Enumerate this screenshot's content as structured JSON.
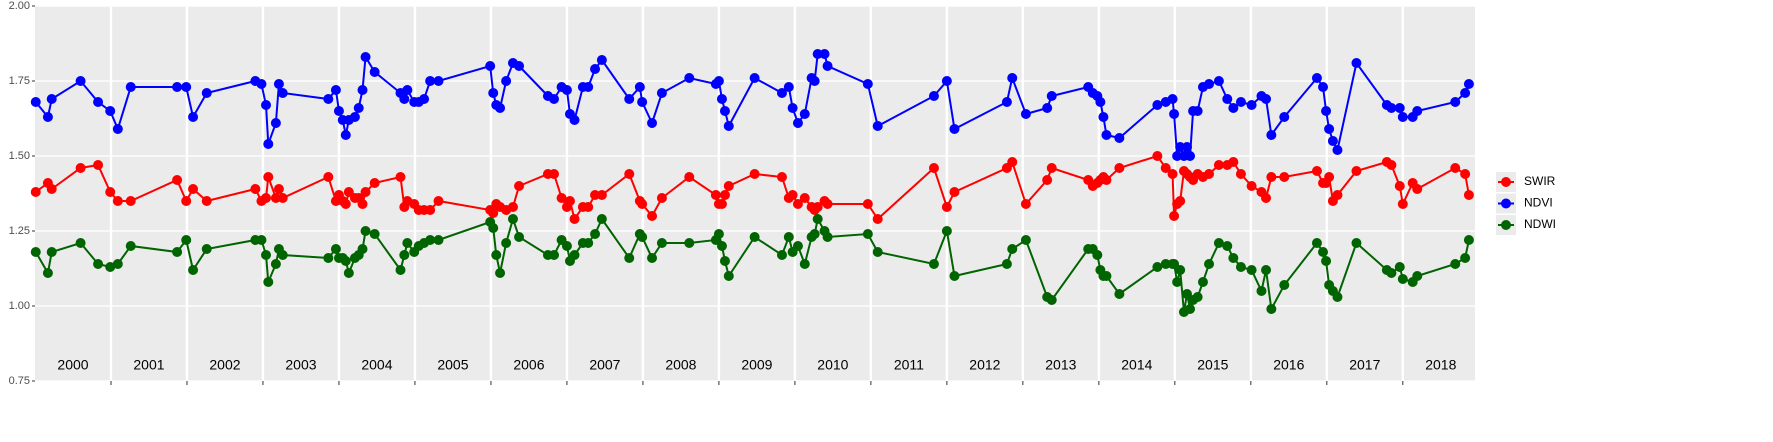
{
  "chart_data": {
    "type": "line",
    "x": [
      2000.01,
      2000.17,
      2000.22,
      2000.6,
      2000.83,
      2000.99,
      2001.09,
      2001.26,
      2001.87,
      2001.99,
      2002.08,
      2002.26,
      2002.9,
      2002.98,
      2003.04,
      2003.07,
      2003.17,
      2003.21,
      2003.26,
      2003.86,
      2003.96,
      2004.0,
      2004.05,
      2004.09,
      2004.13,
      2004.21,
      2004.26,
      2004.31,
      2004.35,
      2004.47,
      2004.81,
      2004.86,
      2004.9,
      2004.99,
      2005.05,
      2005.12,
      2005.2,
      2005.31,
      2005.99,
      2006.03,
      2006.07,
      2006.12,
      2006.2,
      2006.29,
      2006.37,
      2006.75,
      2006.83,
      2006.93,
      2007.0,
      2007.04,
      2007.1,
      2007.21,
      2007.28,
      2007.37,
      2007.46,
      2007.82,
      2007.96,
      2007.99,
      2008.12,
      2008.25,
      2008.61,
      2008.96,
      2009.0,
      2009.04,
      2009.08,
      2009.13,
      2009.47,
      2009.83,
      2009.92,
      2009.97,
      2010.04,
      2010.13,
      2010.22,
      2010.26,
      2010.3,
      2010.39,
      2010.43,
      2010.96,
      2011.09,
      2011.83,
      2012.0,
      2012.1,
      2012.79,
      2012.86,
      2013.04,
      2013.32,
      2013.38,
      2013.86,
      2013.92,
      2013.98,
      2014.02,
      2014.06,
      2014.1,
      2014.27,
      2014.77,
      2014.88,
      2014.97,
      2014.99,
      2015.03,
      2015.07,
      2015.12,
      2015.16,
      2015.2,
      2015.24,
      2015.3,
      2015.37,
      2015.45,
      2015.58,
      2015.69,
      2015.77,
      2015.87,
      2016.01,
      2016.14,
      2016.2,
      2016.27,
      2016.44,
      2016.87,
      2016.95,
      2016.99,
      2017.03,
      2017.08,
      2017.14,
      2017.39,
      2017.79,
      2017.85,
      2017.96,
      2018.0,
      2018.13,
      2018.19,
      2018.69,
      2018.82,
      2018.87
    ],
    "series": [
      {
        "name": "SWIR",
        "color": "#ff0000",
        "values": [
          1.38,
          1.41,
          1.39,
          1.46,
          1.47,
          1.38,
          1.35,
          1.35,
          1.42,
          1.35,
          1.39,
          1.35,
          1.39,
          1.35,
          1.36,
          1.43,
          1.36,
          1.39,
          1.36,
          1.43,
          1.35,
          1.37,
          1.35,
          1.34,
          1.38,
          1.36,
          1.36,
          1.34,
          1.38,
          1.41,
          1.43,
          1.33,
          1.35,
          1.34,
          1.32,
          1.32,
          1.32,
          1.35,
          1.32,
          1.31,
          1.34,
          1.33,
          1.32,
          1.33,
          1.4,
          1.44,
          1.44,
          1.36,
          1.33,
          1.35,
          1.29,
          1.33,
          1.33,
          1.37,
          1.37,
          1.44,
          1.35,
          1.34,
          1.3,
          1.36,
          1.43,
          1.37,
          1.34,
          1.34,
          1.37,
          1.4,
          1.44,
          1.43,
          1.36,
          1.37,
          1.34,
          1.36,
          1.33,
          1.32,
          1.33,
          1.35,
          1.34,
          1.34,
          1.29,
          1.46,
          1.33,
          1.38,
          1.46,
          1.48,
          1.34,
          1.42,
          1.46,
          1.42,
          1.4,
          1.41,
          1.42,
          1.43,
          1.42,
          1.46,
          1.5,
          1.46,
          1.44,
          1.3,
          1.34,
          1.35,
          1.45,
          1.44,
          1.43,
          1.42,
          1.44,
          1.43,
          1.44,
          1.47,
          1.47,
          1.48,
          1.44,
          1.4,
          1.38,
          1.36,
          1.43,
          1.43,
          1.45,
          1.41,
          1.41,
          1.43,
          1.35,
          1.37,
          1.45,
          1.48,
          1.47,
          1.4,
          1.34,
          1.41,
          1.39,
          1.46,
          1.44,
          1.37
        ]
      },
      {
        "name": "NDVI",
        "color": "#0000ff",
        "values": [
          1.68,
          1.63,
          1.69,
          1.75,
          1.68,
          1.65,
          1.59,
          1.73,
          1.73,
          1.73,
          1.63,
          1.71,
          1.75,
          1.74,
          1.67,
          1.54,
          1.61,
          1.74,
          1.71,
          1.69,
          1.72,
          1.65,
          1.62,
          1.57,
          1.62,
          1.63,
          1.66,
          1.72,
          1.83,
          1.78,
          1.71,
          1.69,
          1.72,
          1.68,
          1.68,
          1.69,
          1.75,
          1.75,
          1.8,
          1.71,
          1.67,
          1.66,
          1.75,
          1.81,
          1.8,
          1.7,
          1.69,
          1.73,
          1.72,
          1.64,
          1.62,
          1.73,
          1.73,
          1.79,
          1.82,
          1.69,
          1.73,
          1.68,
          1.61,
          1.71,
          1.76,
          1.74,
          1.75,
          1.69,
          1.65,
          1.6,
          1.76,
          1.71,
          1.73,
          1.66,
          1.61,
          1.64,
          1.76,
          1.75,
          1.84,
          1.84,
          1.8,
          1.74,
          1.6,
          1.7,
          1.75,
          1.59,
          1.68,
          1.76,
          1.64,
          1.66,
          1.7,
          1.73,
          1.71,
          1.7,
          1.68,
          1.63,
          1.57,
          1.56,
          1.67,
          1.68,
          1.69,
          1.64,
          1.5,
          1.53,
          1.5,
          1.53,
          1.5,
          1.65,
          1.65,
          1.73,
          1.74,
          1.75,
          1.69,
          1.66,
          1.68,
          1.67,
          1.7,
          1.69,
          1.57,
          1.63,
          1.76,
          1.73,
          1.65,
          1.59,
          1.55,
          1.52,
          1.81,
          1.67,
          1.66,
          1.66,
          1.63,
          1.63,
          1.65,
          1.68,
          1.71,
          1.74
        ]
      },
      {
        "name": "NDWI",
        "color": "#006400",
        "values": [
          1.18,
          1.11,
          1.18,
          1.21,
          1.14,
          1.13,
          1.14,
          1.2,
          1.18,
          1.22,
          1.12,
          1.19,
          1.22,
          1.22,
          1.17,
          1.08,
          1.14,
          1.19,
          1.17,
          1.16,
          1.19,
          1.16,
          1.16,
          1.15,
          1.11,
          1.16,
          1.17,
          1.19,
          1.25,
          1.24,
          1.12,
          1.17,
          1.21,
          1.18,
          1.2,
          1.21,
          1.22,
          1.22,
          1.28,
          1.26,
          1.17,
          1.11,
          1.21,
          1.29,
          1.23,
          1.17,
          1.17,
          1.22,
          1.2,
          1.15,
          1.17,
          1.21,
          1.21,
          1.24,
          1.29,
          1.16,
          1.24,
          1.23,
          1.16,
          1.21,
          1.21,
          1.22,
          1.24,
          1.2,
          1.15,
          1.1,
          1.23,
          1.17,
          1.23,
          1.18,
          1.2,
          1.14,
          1.23,
          1.24,
          1.29,
          1.25,
          1.23,
          1.24,
          1.18,
          1.14,
          1.25,
          1.1,
          1.14,
          1.19,
          1.22,
          1.03,
          1.02,
          1.19,
          1.19,
          1.17,
          1.12,
          1.1,
          1.1,
          1.04,
          1.13,
          1.14,
          1.14,
          1.14,
          1.08,
          1.12,
          0.98,
          1.04,
          0.99,
          1.02,
          1.03,
          1.08,
          1.14,
          1.21,
          1.2,
          1.16,
          1.13,
          1.12,
          1.05,
          1.12,
          0.99,
          1.07,
          1.21,
          1.18,
          1.15,
          1.07,
          1.05,
          1.03,
          1.21,
          1.12,
          1.11,
          1.13,
          1.09,
          1.08,
          1.1,
          1.14,
          1.16,
          1.22
        ]
      }
    ],
    "xlim": [
      2000,
      2018.95
    ],
    "xticks": [
      2001,
      2002,
      2003,
      2004,
      2005,
      2006,
      2007,
      2008,
      2009,
      2010,
      2011,
      2012,
      2013,
      2014,
      2015,
      2016,
      2017,
      2018
    ],
    "year_labels": [
      "2000",
      "2001",
      "2002",
      "2003",
      "2004",
      "2005",
      "2006",
      "2007",
      "2008",
      "2009",
      "2010",
      "2011",
      "2012",
      "2013",
      "2014",
      "2015",
      "2016",
      "2017",
      "2018"
    ],
    "ylim": [
      0.75,
      2
    ],
    "yticks": [
      0.75,
      {
        "value": 1,
        "label": "1.00"
      },
      1.25,
      {
        "value": 1.5,
        "label": "1.50"
      },
      1.75,
      {
        "value": 2,
        "label": "2.00"
      }
    ],
    "grid": true
  }
}
